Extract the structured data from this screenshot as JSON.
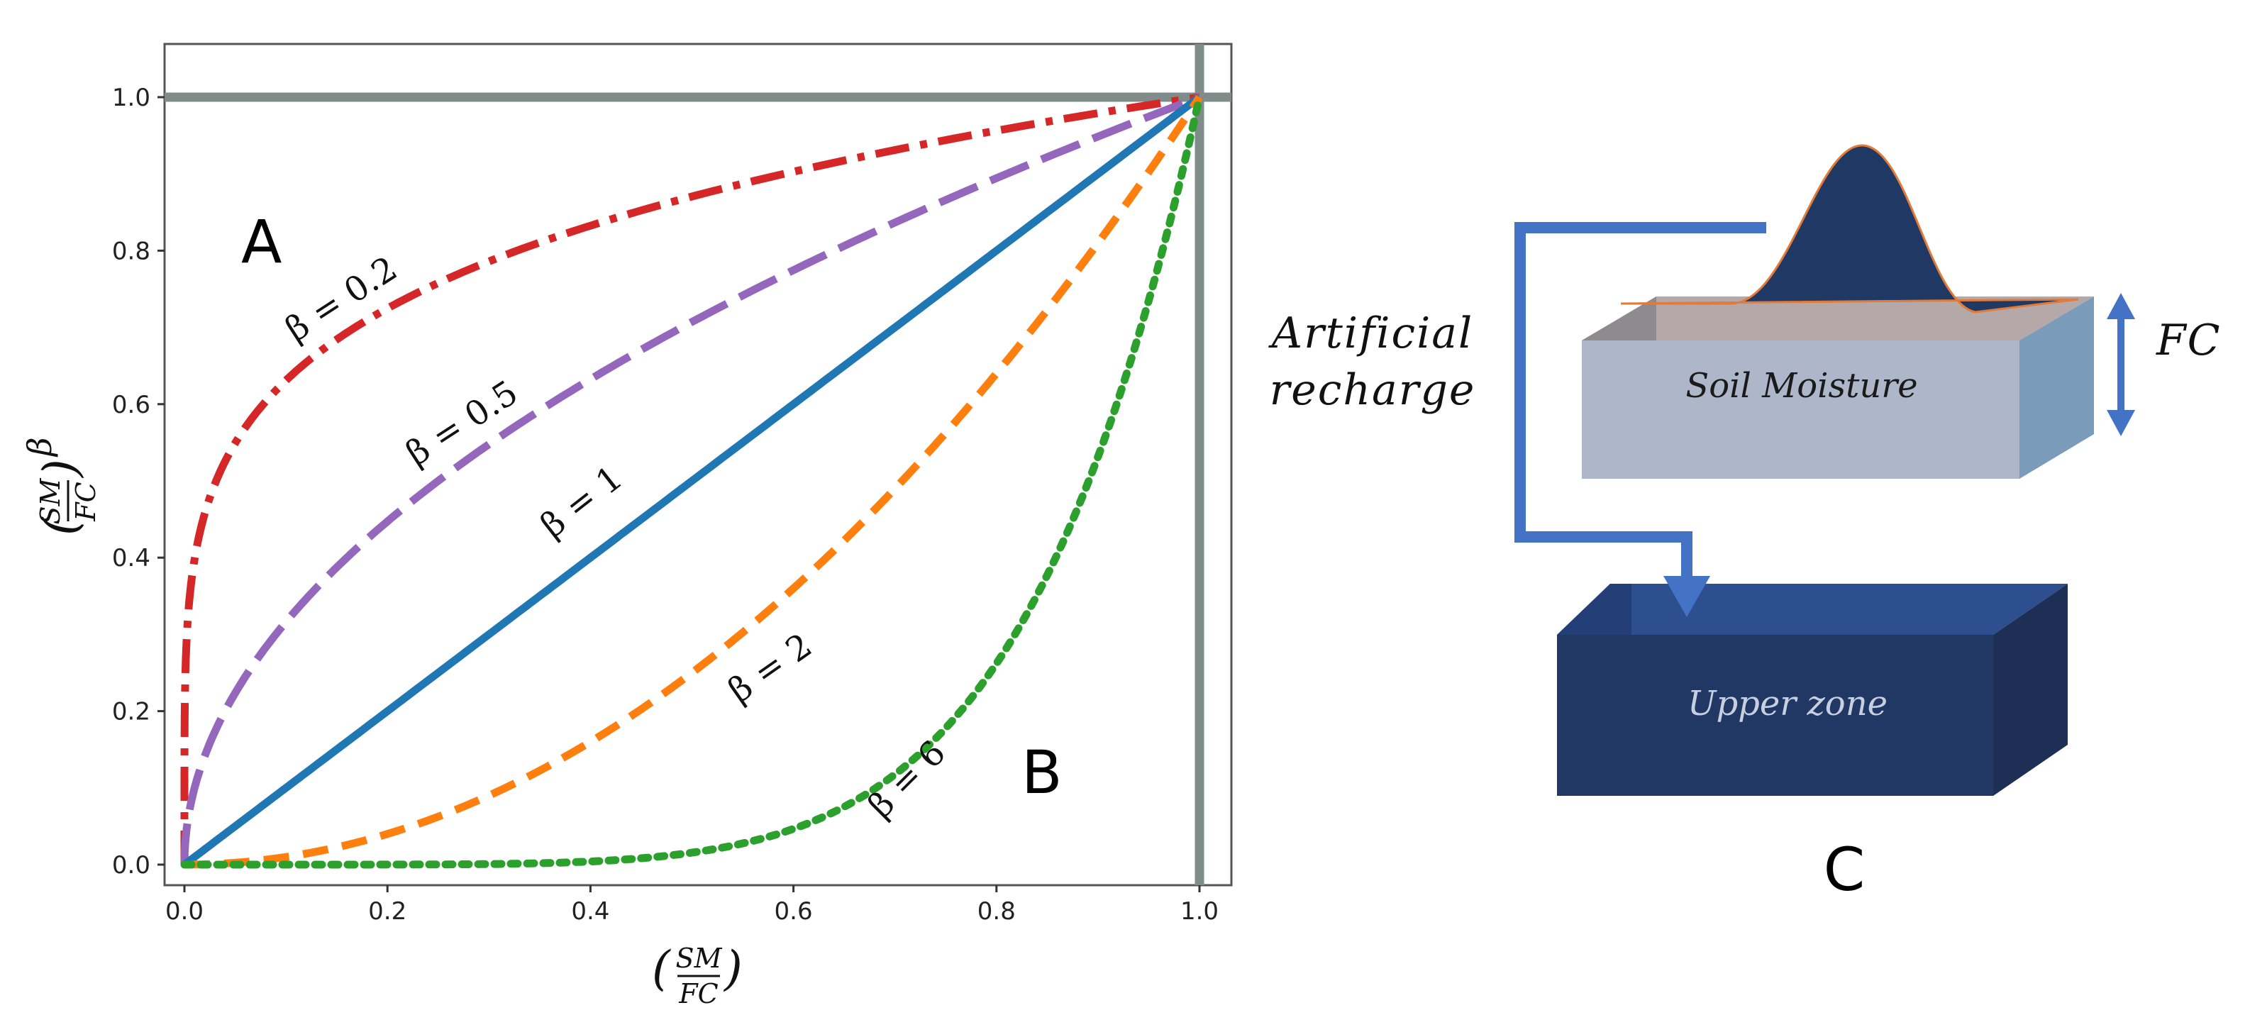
{
  "chart_data": {
    "type": "line",
    "xlim": [
      0.0,
      1.0
    ],
    "ylim": [
      0.0,
      1.0
    ],
    "x_ticks": [
      "0.0",
      "0.2",
      "0.4",
      "0.6",
      "0.8",
      "1.0"
    ],
    "y_ticks": [
      "0.0",
      "0.2",
      "0.4",
      "0.6",
      "0.8",
      "1.0"
    ],
    "xlabel": {
      "num": "SM",
      "den": "FC"
    },
    "ylabel": {
      "num": "SM",
      "den": "FC",
      "exp": "β"
    },
    "grid": false,
    "function": "y = x^β",
    "series": [
      {
        "beta": 0.2,
        "label": "β = 0.2",
        "color": "#d62728",
        "style": "dashdot"
      },
      {
        "beta": 0.5,
        "label": "β = 0.5",
        "color": "#9467bd",
        "style": "longdash"
      },
      {
        "beta": 1,
        "label": "β = 1",
        "color": "#1f77b4",
        "style": "solid"
      },
      {
        "beta": 2,
        "label": "β = 2",
        "color": "#ff7f0e",
        "style": "dashed"
      },
      {
        "beta": 6,
        "label": "β = 6",
        "color": "#2ca02c",
        "style": "dotted"
      }
    ],
    "reference_lines": [
      {
        "orientation": "horizontal",
        "value": 1.0,
        "color": "#7f8c8a"
      },
      {
        "orientation": "vertical",
        "value": 1.0,
        "color": "#7f8c8a"
      }
    ],
    "annotations": [
      "A",
      "B"
    ]
  },
  "diagram": {
    "panel_label": "C",
    "recharge_label_line1": "Artificial",
    "recharge_label_line2": "recharge",
    "soil_label": "Soil Moisture",
    "upper_label": "Upper zone",
    "fc_label": "FC",
    "colors": {
      "arrow": "#4472c4",
      "soil_front": "#aeb7c9",
      "soil_side": "#7b9bbb",
      "upper_front": "#213864",
      "wave": "#1f3864"
    }
  }
}
